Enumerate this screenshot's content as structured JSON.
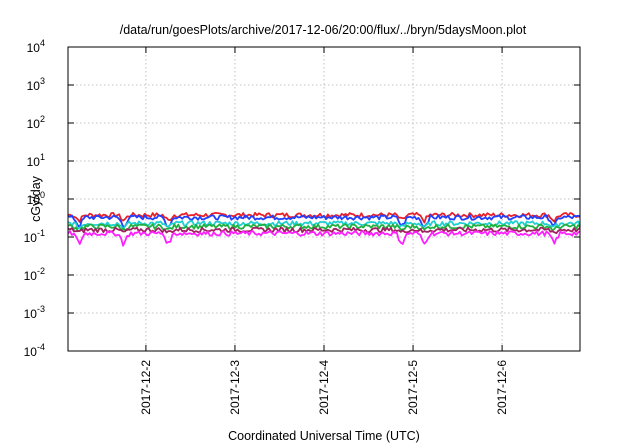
{
  "chart_data": {
    "type": "line",
    "title": "/data/run/goesPlots/archive/2017-12-06/20:00/flux/../bryn/5daysMoon.plot",
    "xlabel": "Coordinated Universal Time (UTC)",
    "ylabel": "cGy/day",
    "yscale": "log",
    "ylim": [
      0.0001,
      10000
    ],
    "xlim": [
      "2017-12-01T03:00",
      "2017-12-06T21:00"
    ],
    "grid": true,
    "x_ticks": [
      "2017-12-2",
      "2017-12-3",
      "2017-12-4",
      "2017-12-5",
      "2017-12-6"
    ],
    "y_ticks": [
      {
        "base": "10",
        "exp": "-4"
      },
      {
        "base": "10",
        "exp": "-3"
      },
      {
        "base": "10",
        "exp": "-2"
      },
      {
        "base": "10",
        "exp": "-1"
      },
      {
        "base": "10",
        "exp": "0"
      },
      {
        "base": "10",
        "exp": "1"
      },
      {
        "base": "10",
        "exp": "2"
      },
      {
        "base": "10",
        "exp": "3"
      },
      {
        "base": "10",
        "exp": "4"
      }
    ],
    "series": [
      {
        "color": "#e8202a",
        "level": 0.38,
        "dip": 0.7
      },
      {
        "color": "#2040ff",
        "level": 0.33,
        "dip": 0.55
      },
      {
        "color": "#20d0d0",
        "level": 0.23,
        "dip": 0.75
      },
      {
        "color": "#20b040",
        "level": 0.19,
        "dip": 0.8
      },
      {
        "color": "#a02060",
        "level": 0.155,
        "dip": 0.85
      },
      {
        "color": "#ff20ff",
        "level": 0.125,
        "dip": 0.5
      }
    ],
    "dip_times": [
      "2017-12-01T06:00",
      "2017-12-01T18:00",
      "2017-12-02T06:00",
      "2017-12-04T21:00",
      "2017-12-05T03:00",
      "2017-12-06T14:00"
    ]
  }
}
